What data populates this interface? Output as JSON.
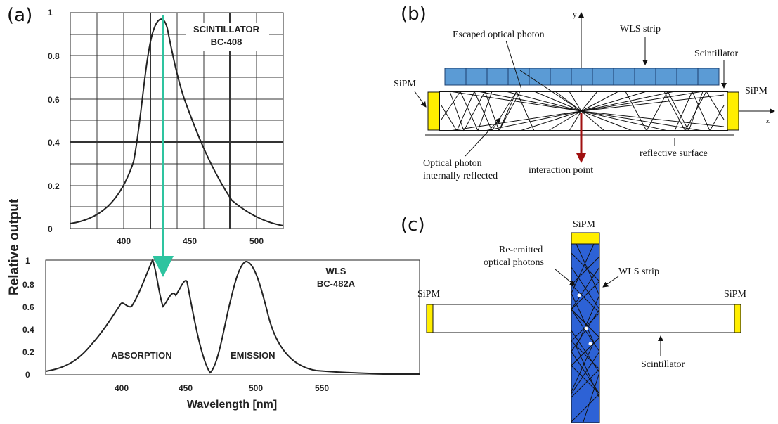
{
  "panels": {
    "a": {
      "label": "(a)",
      "ylabel": "Relative output",
      "top_plot": {
        "title_line1": "SCINTILLATOR",
        "title_line2": "BC-408",
        "y_ticks": [
          "1",
          "0.8",
          "0.6",
          "0.4",
          "0.2",
          "0"
        ],
        "x_ticks": [
          "400",
          "450",
          "500"
        ],
        "xlim": [
          365,
          525
        ],
        "ylim": [
          0,
          1
        ],
        "peak_nm": 425
      },
      "bottom_plot": {
        "title_line1": "WLS",
        "title_line2": "BC-482A",
        "y_ticks": [
          "1",
          "0.8",
          "0.6",
          "0.4",
          "0.2",
          "0"
        ],
        "x_ticks": [
          "400",
          "450",
          "500",
          "550"
        ],
        "xlabel": "Wavelength  [nm]",
        "xlim": [
          350,
          600
        ],
        "ylim": [
          0,
          1
        ],
        "label_absorption": "ABSORPTION",
        "label_emission": "EMISSION"
      },
      "arrow_color": "#2ec4a0"
    },
    "b": {
      "label": "(b)",
      "axis_y": "y",
      "axis_z": "z",
      "escaped": "Escaped optical photon",
      "wls_strip": "WLS strip",
      "scintillator": "Scintillator",
      "sipm_left": "SiPM",
      "sipm_right": "SiPM",
      "optical_line1": "Optical photon",
      "optical_line2": "internally reflected",
      "interaction_point": "interaction point",
      "reflective_surface": "reflective surface",
      "strip_color": "#5b9bd5",
      "sipm_color": "#ffee00",
      "arrow_color": "#a01010"
    },
    "c": {
      "label": "(c)",
      "sipm_top": "SiPM",
      "sipm_left": "SiPM",
      "sipm_right": "SiPM",
      "reemitted_line1": "Re-emitted",
      "reemitted_line2": "optical photons",
      "wls_strip": "WLS strip",
      "scintillator": "Scintillator",
      "strip_color": "#2d62d6"
    }
  }
}
